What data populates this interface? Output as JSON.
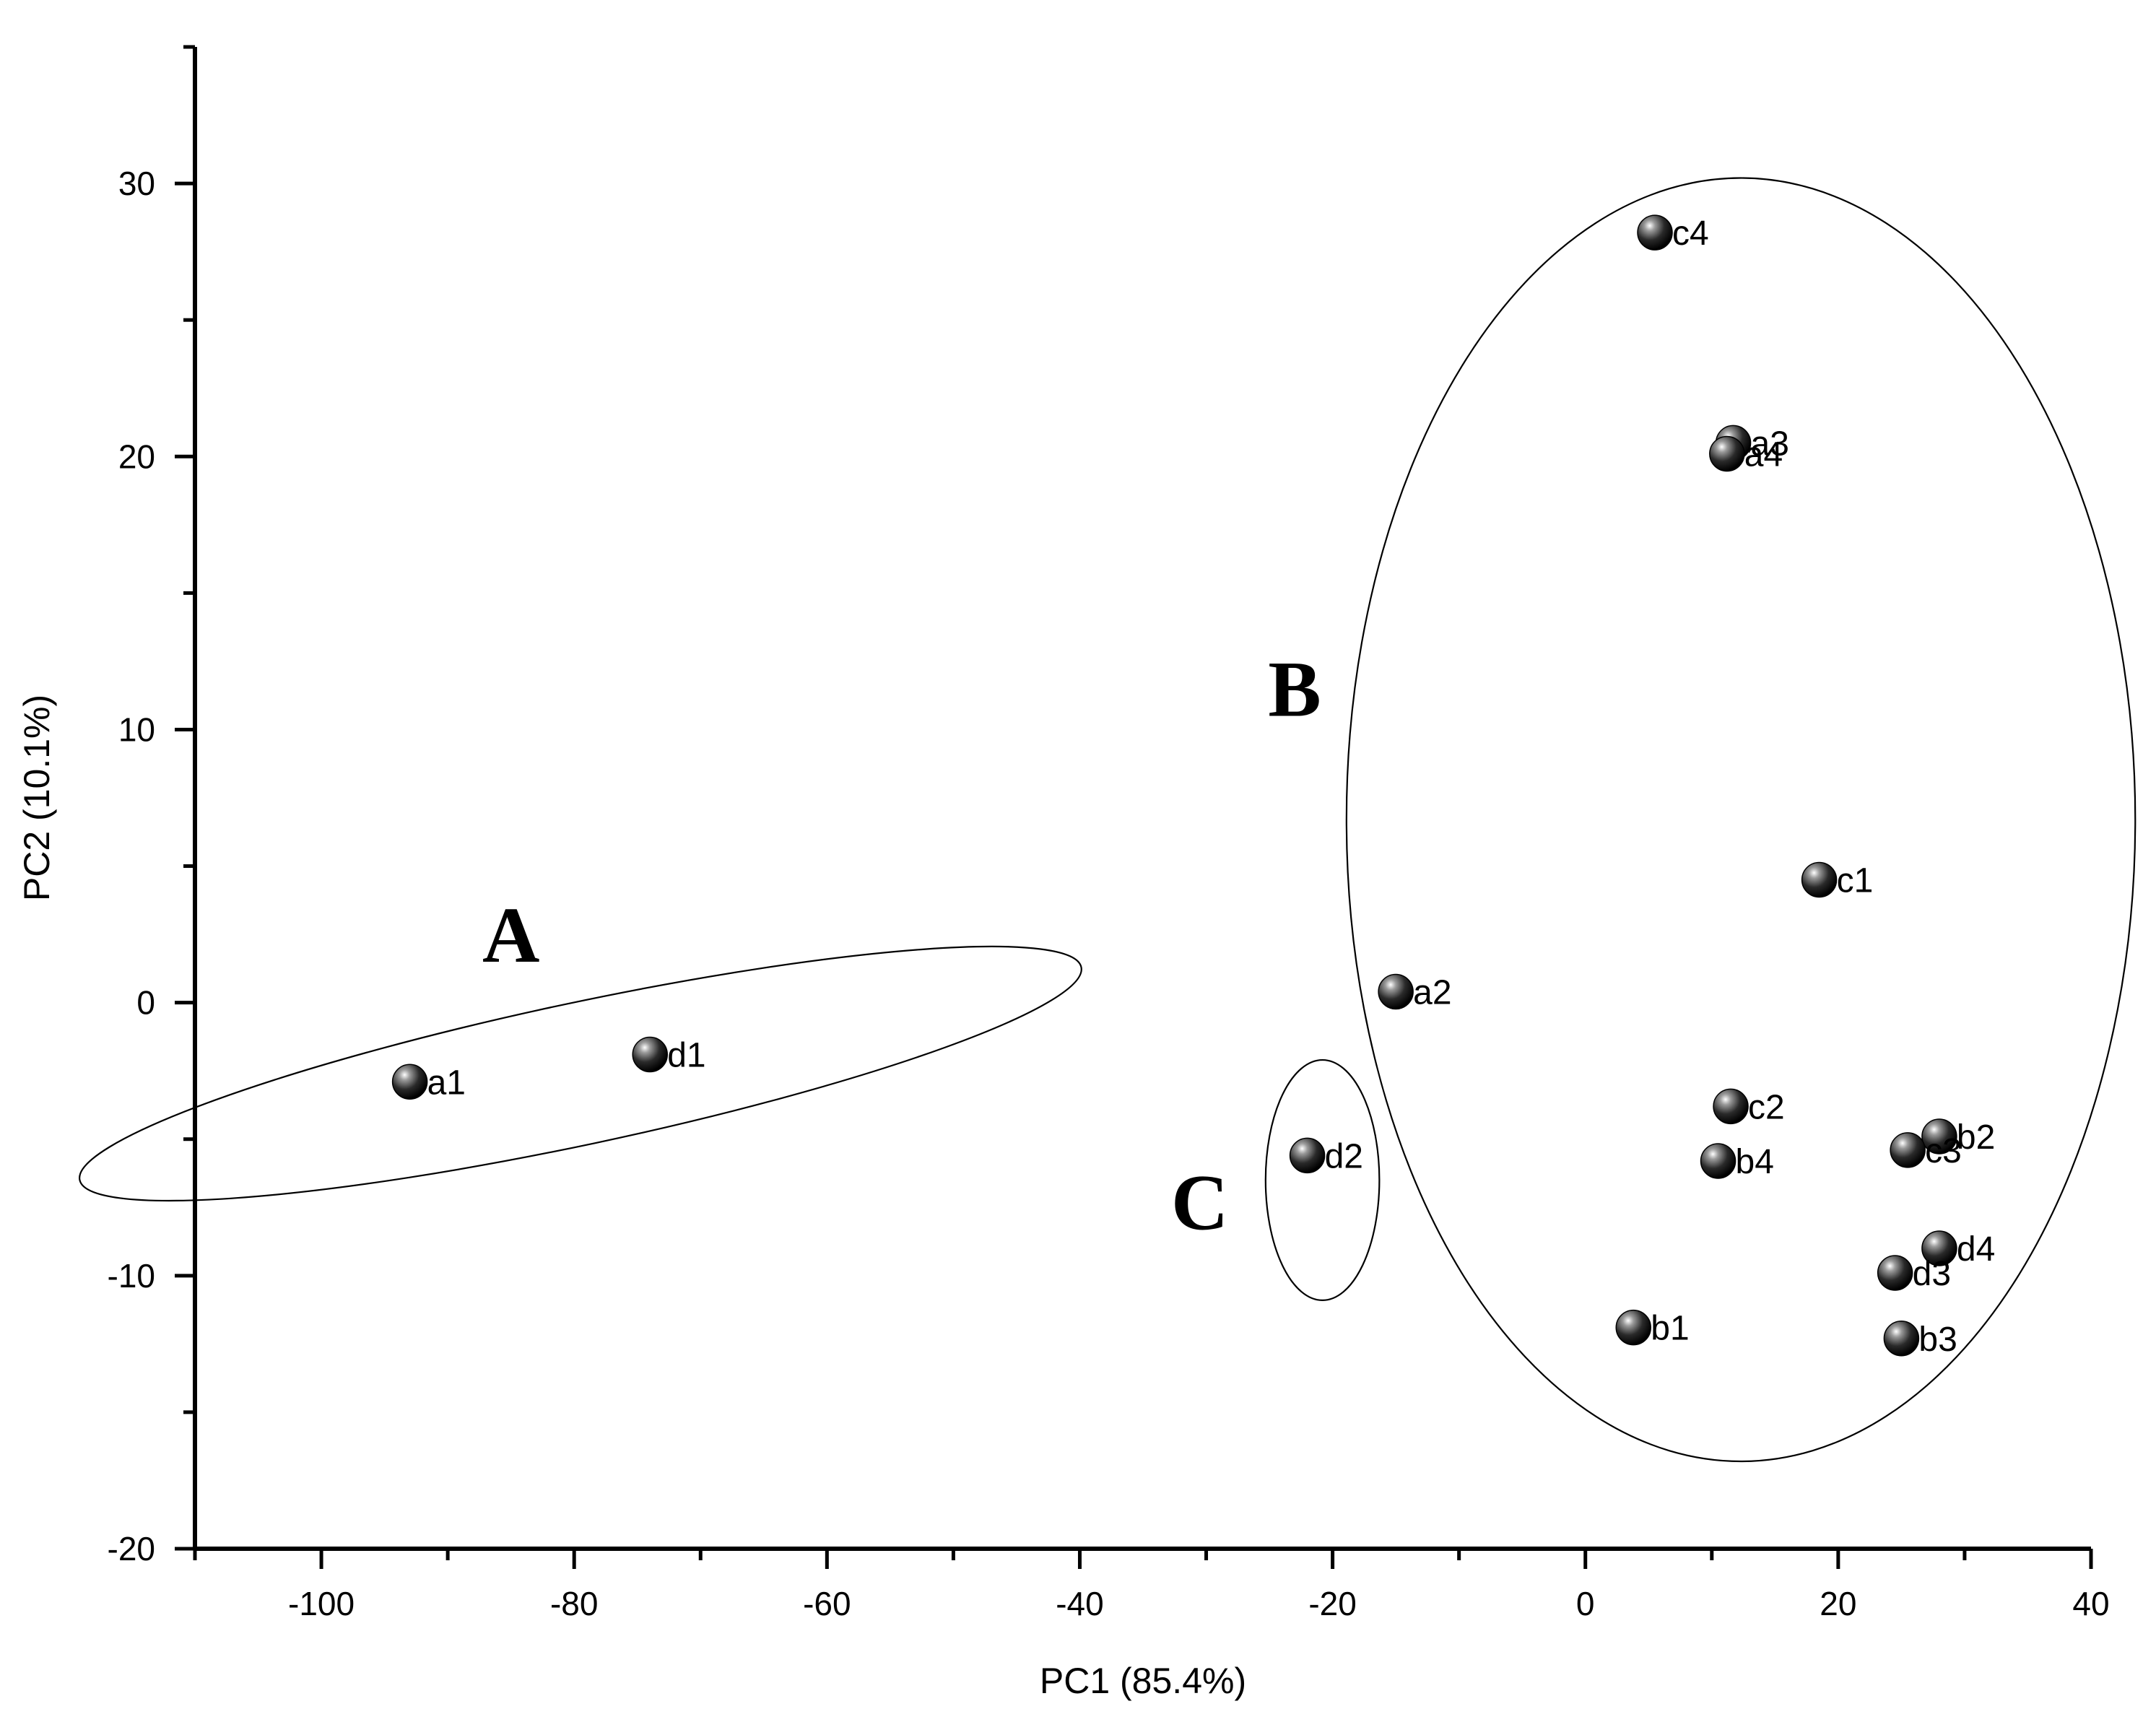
{
  "chart_data": {
    "type": "scatter",
    "title": "",
    "xlabel": "PC1 (85.4%)",
    "ylabel": "PC2 (10.1%)",
    "xlim": [
      -110,
      40
    ],
    "ylim": [
      -20,
      35
    ],
    "xticks": [
      -100,
      -80,
      -60,
      -40,
      -20,
      0,
      20,
      40
    ],
    "xtick_labels": [
      "-100",
      "-80",
      "-60",
      "-40",
      "-20",
      "0",
      "20",
      "40"
    ],
    "yticks": [
      -20,
      -10,
      0,
      10,
      20,
      30
    ],
    "ytick_labels": [
      "-20",
      "-10",
      "0",
      "10",
      "20",
      "30"
    ],
    "grid": false,
    "points": [
      {
        "label": "a1",
        "x": -93.0,
        "y": -2.9
      },
      {
        "label": "d1",
        "x": -74.0,
        "y": -1.9
      },
      {
        "label": "a2",
        "x": -15.0,
        "y": 0.4
      },
      {
        "label": "d2",
        "x": -22.0,
        "y": -5.6
      },
      {
        "label": "c4",
        "x": 5.5,
        "y": 28.2
      },
      {
        "label": "a3",
        "x": 11.7,
        "y": 20.5
      },
      {
        "label": "a4",
        "x": 11.2,
        "y": 20.1
      },
      {
        "label": "c1",
        "x": 18.5,
        "y": 4.5
      },
      {
        "label": "c2",
        "x": 11.5,
        "y": -3.8
      },
      {
        "label": "b4",
        "x": 10.5,
        "y": -5.8
      },
      {
        "label": "b2",
        "x": 28.0,
        "y": -4.9
      },
      {
        "label": "c3",
        "x": 25.5,
        "y": -5.4
      },
      {
        "label": "d4",
        "x": 28.0,
        "y": -9.0
      },
      {
        "label": "d3",
        "x": 24.5,
        "y": -9.9
      },
      {
        "label": "b1",
        "x": 3.8,
        "y": -11.9
      },
      {
        "label": "b3",
        "x": 25.0,
        "y": -12.3
      }
    ],
    "groups": [
      {
        "label": "A",
        "cx": -79.5,
        "cy": -2.6,
        "rx": 40.5,
        "ry": 2.6,
        "angle_deg": -12
      },
      {
        "label": "B",
        "cx": 12.3,
        "cy": 6.7,
        "rx": 31.2,
        "ry": 23.5,
        "angle_deg": 0
      },
      {
        "label": "C",
        "cx": -20.8,
        "cy": -6.5,
        "rx": 4.5,
        "ry": 4.4,
        "angle_deg": 0
      }
    ]
  }
}
